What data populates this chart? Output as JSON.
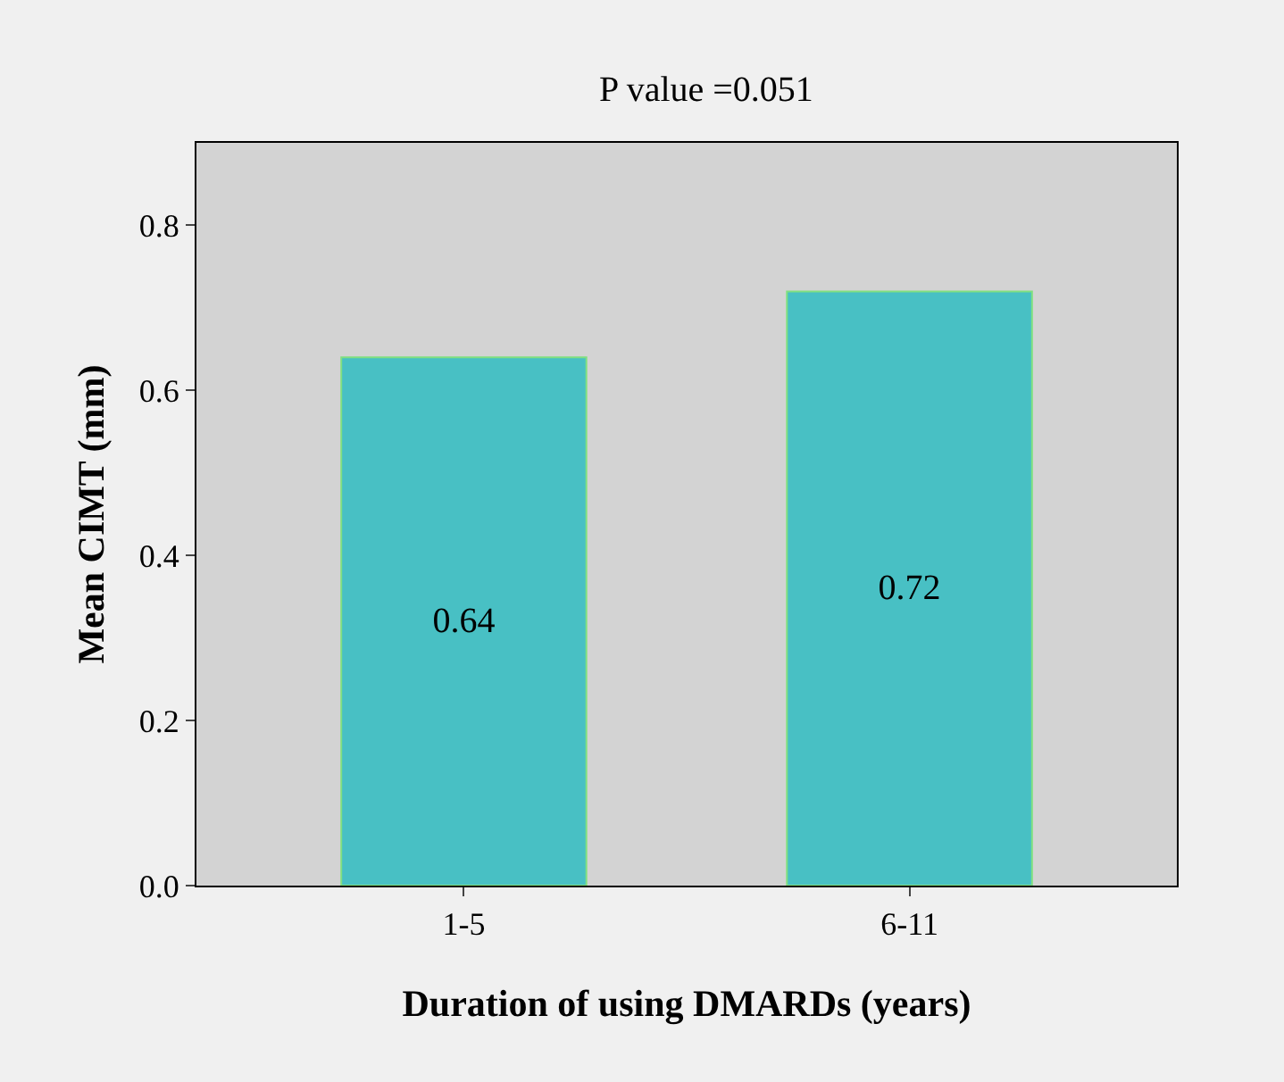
{
  "chart_data": {
    "type": "bar",
    "title": "P value =0.051",
    "xlabel": "Duration of using DMARDs (years)",
    "ylabel": "Mean CIMT (mm)",
    "categories": [
      "1-5",
      "6-11"
    ],
    "values": [
      0.64,
      0.72
    ],
    "color": "#48c0c4",
    "ylim": [
      0,
      0.9
    ],
    "yticks": [
      {
        "value": 0,
        "label": "0.0"
      },
      {
        "value": 0.2,
        "label": "0.2"
      },
      {
        "value": 0.4,
        "label": "0.4"
      },
      {
        "value": 0.6,
        "label": "0.6"
      },
      {
        "value": 0.8,
        "label": "0.8"
      }
    ],
    "data_labels": true,
    "grid": false
  }
}
